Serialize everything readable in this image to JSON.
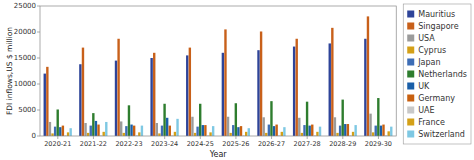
{
  "chart_data": {
    "type": "bar",
    "xlabel": "Year",
    "ylabel": "FDI inflows,US $ million",
    "categories": [
      "2020-21",
      "2021-22",
      "2022-23",
      "2023-24",
      "2024-25",
      "2025-26",
      "2026-27",
      "2027-28",
      "2028-29",
      "2029-30"
    ],
    "series": [
      {
        "name": "Mauritius",
        "color": "#2e4499",
        "values": [
          12000,
          13800,
          14500,
          15000,
          15500,
          16000,
          16500,
          17200,
          17800,
          18700
        ]
      },
      {
        "name": "Singapore",
        "color": "#c8601a",
        "values": [
          13300,
          17000,
          18700,
          16000,
          17000,
          20500,
          20100,
          18700,
          20800,
          23000
        ]
      },
      {
        "name": "USA",
        "color": "#9b9b9b",
        "values": [
          2700,
          2500,
          2800,
          2500,
          3700,
          3700,
          3600,
          3500,
          3600,
          4300
        ]
      },
      {
        "name": "Cyprus",
        "color": "#d4a017",
        "values": [
          500,
          600,
          600,
          500,
          600,
          600,
          600,
          600,
          600,
          700
        ]
      },
      {
        "name": "Japan",
        "color": "#3d6db5",
        "values": [
          1800,
          2000,
          1900,
          2000,
          1800,
          2100,
          2200,
          2100,
          2000,
          2000
        ]
      },
      {
        "name": "Netherlands",
        "color": "#2e7d2e",
        "values": [
          5100,
          4400,
          5900,
          6200,
          6200,
          6300,
          6700,
          6600,
          7000,
          7300
        ]
      },
      {
        "name": "UK",
        "color": "#1a5fa8",
        "values": [
          1700,
          2900,
          2200,
          3500,
          2100,
          1700,
          1900,
          2000,
          2300,
          2000
        ]
      },
      {
        "name": "Germany",
        "color": "#c86010",
        "values": [
          2000,
          2200,
          2000,
          2000,
          2100,
          1900,
          2200,
          2200,
          2300,
          2200
        ]
      },
      {
        "name": "UAE",
        "color": "#c8c8c8",
        "values": [
          150,
          150,
          150,
          150,
          150,
          150,
          150,
          150,
          150,
          150
        ]
      },
      {
        "name": "France",
        "color": "#d4a017",
        "values": [
          700,
          800,
          700,
          800,
          700,
          800,
          800,
          800,
          800,
          900
        ]
      },
      {
        "name": "Switzerland",
        "color": "#7ec8e3",
        "values": [
          1500,
          2700,
          2000,
          3300,
          1900,
          1500,
          1700,
          1800,
          2100,
          1800
        ]
      }
    ],
    "ylim": [
      0,
      25000
    ],
    "yticks": [
      0,
      5000,
      10000,
      15000,
      20000,
      25000
    ],
    "grid": false,
    "legend": "right"
  }
}
